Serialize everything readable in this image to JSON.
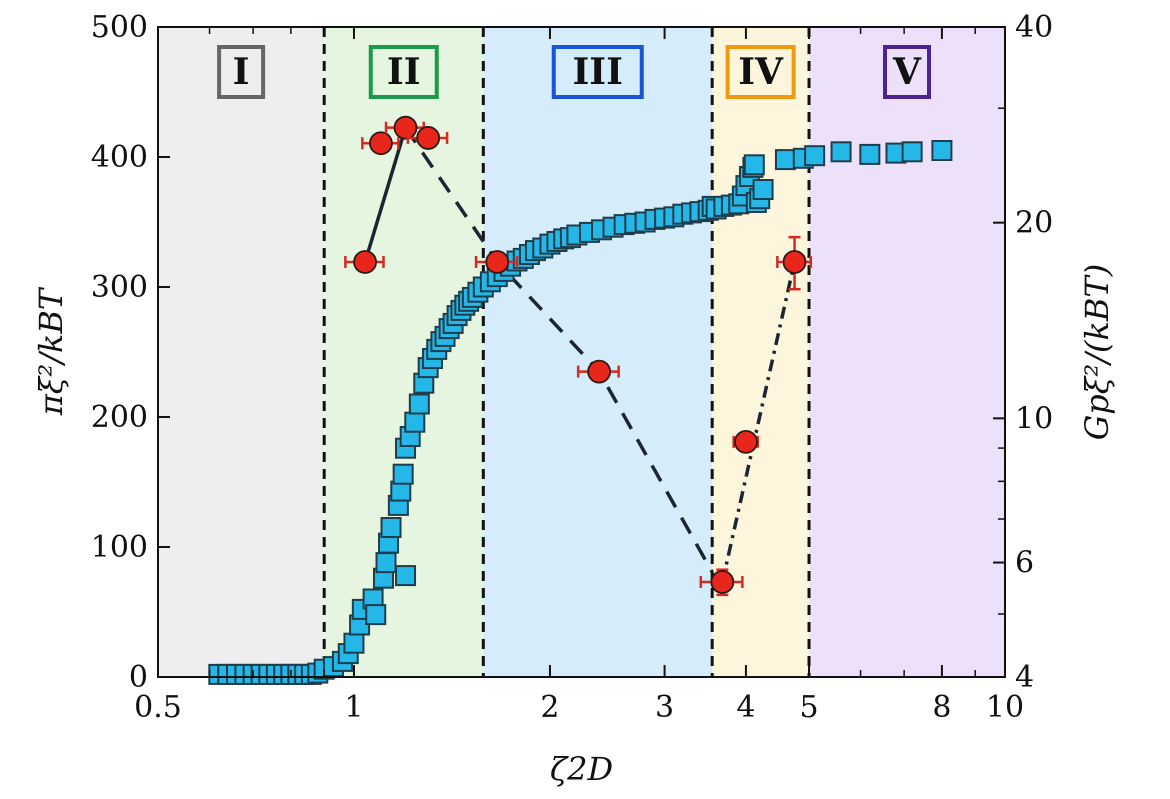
{
  "chart_data": {
    "type": "scatter",
    "xscale": "log",
    "xlim": [
      0.5,
      10
    ],
    "ylim_left": [
      0,
      500
    ],
    "ylim_right_log": [
      4,
      40
    ],
    "x_ticks": [
      {
        "value": 0.5,
        "label": "0.5"
      },
      {
        "value": 1,
        "label": "1"
      },
      {
        "value": 2,
        "label": "2"
      },
      {
        "value": 3,
        "label": "3"
      },
      {
        "value": 4,
        "label": "4"
      },
      {
        "value": 5,
        "label": "5"
      },
      {
        "value": 8,
        "label": "8"
      },
      {
        "value": 10,
        "label": "10"
      }
    ],
    "y_left_ticks": [
      {
        "value": 0,
        "label": "0"
      },
      {
        "value": 100,
        "label": "100"
      },
      {
        "value": 200,
        "label": "200"
      },
      {
        "value": 300,
        "label": "300"
      },
      {
        "value": 400,
        "label": "400"
      },
      {
        "value": 500,
        "label": "500"
      }
    ],
    "y_right_ticks": [
      {
        "value": 4,
        "label": "4"
      },
      {
        "value": 6,
        "label": "6"
      },
      {
        "value": 10,
        "label": "10"
      },
      {
        "value": 20,
        "label": "20"
      },
      {
        "value": 40,
        "label": "40"
      }
    ],
    "xlabel": "ζ2D",
    "ylabel_left": "πξ²/kBT",
    "ylabel_right": "Gpξ²/(kBT)",
    "colors": {
      "squares_fill": "#25b7e8",
      "squares_edge": "#1f3d4a",
      "circles_fill": "#e8261b",
      "errorbar": "#d42a22",
      "line": "#1a2630"
    },
    "regions": [
      {
        "label": "I",
        "x0": 0.5,
        "x1": 0.9,
        "fill": "#eeeeee",
        "frame": "#666666"
      },
      {
        "label": "II",
        "x0": 0.9,
        "x1": 1.58,
        "fill": "#e6f5e0",
        "frame": "#1a9a4a"
      },
      {
        "label": "III",
        "x0": 1.58,
        "x1": 3.55,
        "fill": "#d5ecfa",
        "frame": "#1a55d8"
      },
      {
        "label": "IV",
        "x0": 3.55,
        "x1": 5.0,
        "fill": "#fdf6dc",
        "frame": "#f09a12"
      },
      {
        "label": "V",
        "x0": 5.0,
        "x1": 10,
        "fill": "#ede0fb",
        "frame": "#4c2390"
      }
    ],
    "boundaries": [
      0.9,
      1.58,
      3.55,
      5.0
    ],
    "square_series": {
      "name": "",
      "axis": "left",
      "points": [
        [
          0.62,
          2
        ],
        [
          0.64,
          2
        ],
        [
          0.66,
          2
        ],
        [
          0.68,
          2
        ],
        [
          0.7,
          2
        ],
        [
          0.72,
          2
        ],
        [
          0.74,
          2
        ],
        [
          0.76,
          2
        ],
        [
          0.78,
          2
        ],
        [
          0.8,
          2
        ],
        [
          0.82,
          2
        ],
        [
          0.84,
          2
        ],
        [
          0.86,
          2
        ],
        [
          0.88,
          3
        ],
        [
          0.9,
          6
        ],
        [
          0.93,
          8
        ],
        [
          0.96,
          12
        ],
        [
          0.98,
          18
        ],
        [
          1.0,
          26
        ],
        [
          1.02,
          40
        ],
        [
          1.03,
          52
        ],
        [
          1.07,
          60
        ],
        [
          1.08,
          48
        ],
        [
          1.11,
          76
        ],
        [
          1.12,
          88
        ],
        [
          1.13,
          103
        ],
        [
          1.14,
          115
        ],
        [
          1.17,
          132
        ],
        [
          1.18,
          143
        ],
        [
          1.19,
          156
        ],
        [
          1.2,
          176
        ],
        [
          1.2,
          78
        ],
        [
          1.22,
          185
        ],
        [
          1.24,
          196
        ],
        [
          1.26,
          210
        ],
        [
          1.28,
          226
        ],
        [
          1.3,
          238
        ],
        [
          1.32,
          245
        ],
        [
          1.34,
          252
        ],
        [
          1.36,
          258
        ],
        [
          1.38,
          262
        ],
        [
          1.4,
          268
        ],
        [
          1.42,
          272
        ],
        [
          1.44,
          278
        ],
        [
          1.46,
          282
        ],
        [
          1.48,
          286
        ],
        [
          1.5,
          289
        ],
        [
          1.52,
          292
        ],
        [
          1.55,
          296
        ],
        [
          1.58,
          300
        ],
        [
          1.62,
          304
        ],
        [
          1.66,
          308
        ],
        [
          1.7,
          312
        ],
        [
          1.74,
          316
        ],
        [
          1.78,
          320
        ],
        [
          1.82,
          322
        ],
        [
          1.86,
          325
        ],
        [
          1.9,
          328
        ],
        [
          1.95,
          330
        ],
        [
          2.0,
          333
        ],
        [
          2.05,
          335
        ],
        [
          2.1,
          337
        ],
        [
          2.15,
          338
        ],
        [
          2.2,
          340
        ],
        [
          2.3,
          342
        ],
        [
          2.4,
          344
        ],
        [
          2.5,
          346
        ],
        [
          2.6,
          348
        ],
        [
          2.7,
          349
        ],
        [
          2.8,
          350
        ],
        [
          2.9,
          352
        ],
        [
          3.0,
          353
        ],
        [
          3.1,
          354
        ],
        [
          3.2,
          356
        ],
        [
          3.3,
          357
        ],
        [
          3.4,
          358
        ],
        [
          3.5,
          359
        ],
        [
          3.55,
          362
        ],
        [
          3.6,
          360
        ],
        [
          3.7,
          362
        ],
        [
          3.8,
          363
        ],
        [
          3.9,
          364
        ],
        [
          3.95,
          370
        ],
        [
          4.0,
          378
        ],
        [
          4.05,
          385
        ],
        [
          4.1,
          392
        ],
        [
          4.12,
          394
        ],
        [
          4.15,
          365
        ],
        [
          4.2,
          368
        ],
        [
          4.25,
          375
        ],
        [
          4.6,
          398
        ],
        [
          4.9,
          399
        ],
        [
          5.1,
          401
        ],
        [
          5.6,
          404
        ],
        [
          6.2,
          402
        ],
        [
          6.8,
          403
        ],
        [
          7.2,
          404
        ],
        [
          8.0,
          405
        ]
      ]
    },
    "circle_series": {
      "name": "",
      "axis": "right",
      "points": [
        {
          "x": 1.04,
          "y": 17.4,
          "xerr": 0.07,
          "yerr": 0
        },
        {
          "x": 1.1,
          "y": 26.5,
          "xerr": 0.07,
          "yerr": 0
        },
        {
          "x": 1.2,
          "y": 28.0,
          "xerr": 0.08,
          "yerr": 0
        },
        {
          "x": 1.3,
          "y": 27.0,
          "xerr": 0.09,
          "yerr": 0
        },
        {
          "x": 1.66,
          "y": 17.4,
          "xerr": 0.12,
          "yerr": 0
        },
        {
          "x": 2.38,
          "y": 11.8,
          "xerr": 0.17,
          "yerr": 0
        },
        {
          "x": 3.68,
          "y": 5.6,
          "xerr": 0.27,
          "yerr": 0.25
        },
        {
          "x": 4.0,
          "y": 9.2,
          "xerr": 0.17,
          "yerr": 0
        },
        {
          "x": 4.75,
          "y": 17.4,
          "xerr": 0.28,
          "yerr": 1.6
        }
      ],
      "lines": [
        {
          "style": "solid",
          "points": [
            [
              1.04,
              17.4
            ],
            [
              1.2,
              28.0
            ]
          ]
        },
        {
          "style": "dashed",
          "points": [
            [
              1.2,
              28.0
            ],
            [
              1.66,
              17.4
            ],
            [
              2.38,
              11.8
            ],
            [
              3.55,
              5.8
            ]
          ]
        },
        {
          "style": "dashdot",
          "points": [
            [
              3.68,
              5.6
            ],
            [
              4.75,
              17.4
            ]
          ]
        }
      ]
    }
  }
}
